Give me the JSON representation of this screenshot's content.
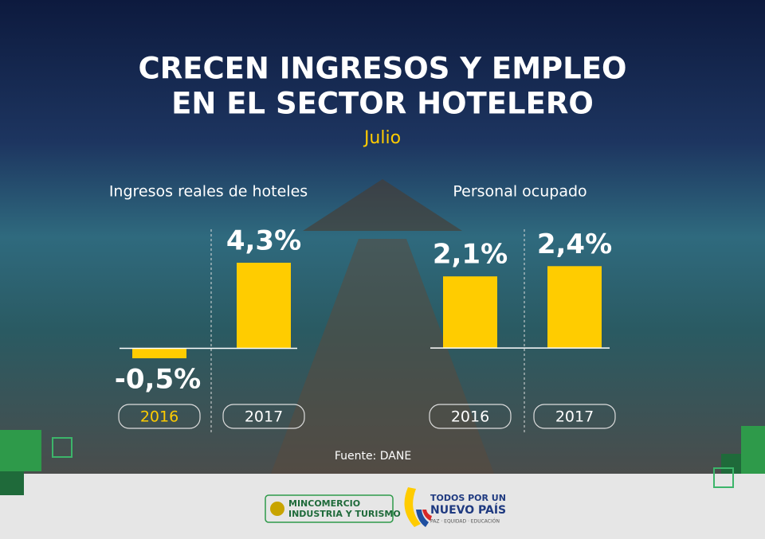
{
  "header": {
    "title_lines": [
      "CRECEN INGRESOS Y EMPLEO",
      "EN EL SECTOR HOTELERO"
    ],
    "subtitle": "Julio"
  },
  "chart_data": [
    {
      "type": "bar",
      "title": "Ingresos reales de hoteles",
      "categories": [
        "2016",
        "2017"
      ],
      "values": [
        -0.5,
        4.3
      ],
      "value_labels": [
        "-0,5%",
        "4,3%"
      ],
      "color": "#ffcc00",
      "ylim": [
        -1.7,
        5.5
      ]
    },
    {
      "type": "bar",
      "title": "Personal ocupado",
      "categories": [
        "2016",
        "2017"
      ],
      "values": [
        2.1,
        2.4
      ],
      "value_labels": [
        "2,1%",
        "2,4%"
      ],
      "color": "#ffcc00",
      "ylim": [
        -1,
        3.2
      ]
    }
  ],
  "source": "Fuente: DANE",
  "footer": {
    "logo1_line1": "MINCOMERCIO",
    "logo1_line2": "INDUSTRIA Y TURISMO",
    "logo2_line1": "TODOS POR UN",
    "logo2_line2": "NUEVO PAÍS",
    "logo2_line3": "PAZ · EQUIDAD · EDUCACIÓN"
  }
}
